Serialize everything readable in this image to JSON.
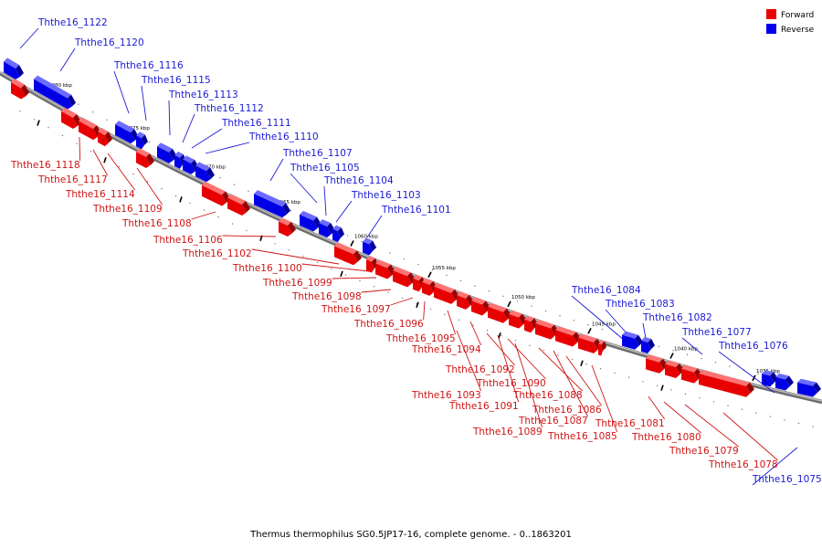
{
  "caption": "Thermus thermophilus SG0.5JP17-16, complete genome. - 0..1863201",
  "legend": [
    {
      "label": "Forward",
      "color": "#ee0000"
    },
    {
      "label": "Reverse",
      "color": "#0000ee"
    }
  ],
  "scale_labels": [
    "1080 kbp",
    "1075 kbp",
    "1070 kbp",
    "1065 kbp",
    "1060 kbp",
    "1055 kbp",
    "1050 kbp",
    "1045 kbp",
    "1040 kbp",
    "1035 kbp"
  ],
  "genes_reverse": [
    "Ththe16_1122",
    "Ththe16_1120",
    "Ththe16_1116",
    "Ththe16_1115",
    "Ththe16_1113",
    "Ththe16_1112",
    "Ththe16_1111",
    "Ththe16_1110",
    "Ththe16_1107",
    "Ththe16_1105",
    "Ththe16_1104",
    "Ththe16_1103",
    "Ththe16_1101",
    "Ththe16_1084",
    "Ththe16_1083",
    "Ththe16_1082",
    "Ththe16_1077",
    "Ththe16_1076",
    "Ththe16_1075"
  ],
  "genes_forward": [
    "Ththe16_1118",
    "Ththe16_1117",
    "Ththe16_1114",
    "Ththe16_1109",
    "Ththe16_1108",
    "Ththe16_1106",
    "Ththe16_1102",
    "Ththe16_1100",
    "Ththe16_1099",
    "Ththe16_1098",
    "Ththe16_1097",
    "Ththe16_1096",
    "Ththe16_1095",
    "Ththe16_1094",
    "Ththe16_1092",
    "Ththe16_1093",
    "Ththe16_1090",
    "Ththe16_1091",
    "Ththe16_1088",
    "Ththe16_1089",
    "Ththe16_1086",
    "Ththe16_1087",
    "Ththe16_1085",
    "Ththe16_1081",
    "Ththe16_1080",
    "Ththe16_1079",
    "Ththe16_1078"
  ]
}
